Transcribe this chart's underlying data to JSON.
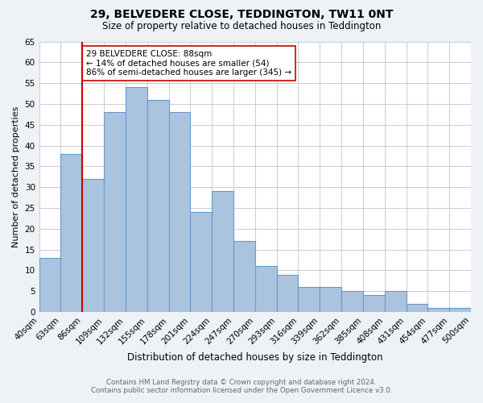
{
  "title": "29, BELVEDERE CLOSE, TEDDINGTON, TW11 0NT",
  "subtitle": "Size of property relative to detached houses in Teddington",
  "xlabel": "Distribution of detached houses by size in Teddington",
  "ylabel": "Number of detached properties",
  "footnote1": "Contains HM Land Registry data © Crown copyright and database right 2024.",
  "footnote2": "Contains public sector information licensed under the Open Government Licence v3.0.",
  "bin_labels": [
    "40sqm",
    "63sqm",
    "86sqm",
    "109sqm",
    "132sqm",
    "155sqm",
    "178sqm",
    "201sqm",
    "224sqm",
    "247sqm",
    "270sqm",
    "293sqm",
    "316sqm",
    "339sqm",
    "362sqm",
    "385sqm",
    "408sqm",
    "431sqm",
    "454sqm",
    "477sqm",
    "500sqm"
  ],
  "bar_values": [
    13,
    38,
    32,
    48,
    54,
    51,
    48,
    24,
    29,
    17,
    11,
    9,
    6,
    6,
    5,
    4,
    5,
    2,
    1,
    1
  ],
  "bar_color": "#aac4e0",
  "bar_edge_color": "#6699cc",
  "vline_x": 2,
  "vline_color": "#cc0000",
  "annotation_text": "29 BELVEDERE CLOSE: 88sqm\n← 14% of detached houses are smaller (54)\n86% of semi-detached houses are larger (345) →",
  "annotation_box_color": "#ffffff",
  "annotation_box_edge": "#cc0000",
  "ylim": [
    0,
    65
  ],
  "yticks": [
    0,
    5,
    10,
    15,
    20,
    25,
    30,
    35,
    40,
    45,
    50,
    55,
    60,
    65
  ],
  "bg_color": "#eef2f7",
  "plot_bg_color": "#ffffff",
  "grid_color": "#cccccc"
}
